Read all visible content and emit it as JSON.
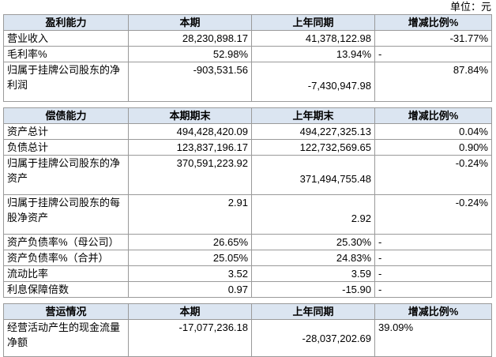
{
  "unit": "单位：元",
  "sections": [
    {
      "header": [
        "盈利能力",
        "本期",
        "上年同期",
        "增减比例%"
      ],
      "rows": [
        [
          "营业收入",
          "28,230,898.17",
          "41,378,122.98",
          "-31.77%"
        ],
        [
          "毛利率%",
          "52.98%",
          "13.94%",
          "-"
        ],
        [
          "归属于挂牌公司股东的净利润",
          "-903,531.56",
          "-7,430,947.98",
          "87.84%"
        ]
      ]
    },
    {
      "header": [
        "偿债能力",
        "本期期末",
        "上年期末",
        "增减比例%"
      ],
      "rows": [
        [
          "资产总计",
          "494,428,420.09",
          "494,227,325.13",
          "0.04%"
        ],
        [
          "负债总计",
          "123,837,196.17",
          "122,732,569.65",
          "0.90%"
        ],
        [
          "归属于挂牌公司股东的净资产",
          "370,591,223.92",
          "371,494,755.48",
          "-0.24%"
        ],
        [
          "归属于挂牌公司股东的每股净资产",
          "2.91",
          "2.92",
          "-0.24%"
        ],
        [
          "资产负债率%（母公司）",
          "26.65%",
          "25.30%",
          "-"
        ],
        [
          "资产负债率%（合并）",
          "25.05%",
          "24.83%",
          "-"
        ],
        [
          "流动比率",
          "3.52",
          "3.59",
          "-"
        ],
        [
          "利息保障倍数",
          "0.97",
          "-15.90",
          "-"
        ]
      ]
    },
    {
      "header": [
        "营运情况",
        "本期",
        "上年同期",
        "增减比例%"
      ],
      "rows": [
        [
          "经营活动产生的现金流量净额",
          "-17,077,236.18",
          "-28,037,202.69",
          "39.09%"
        ]
      ]
    }
  ]
}
